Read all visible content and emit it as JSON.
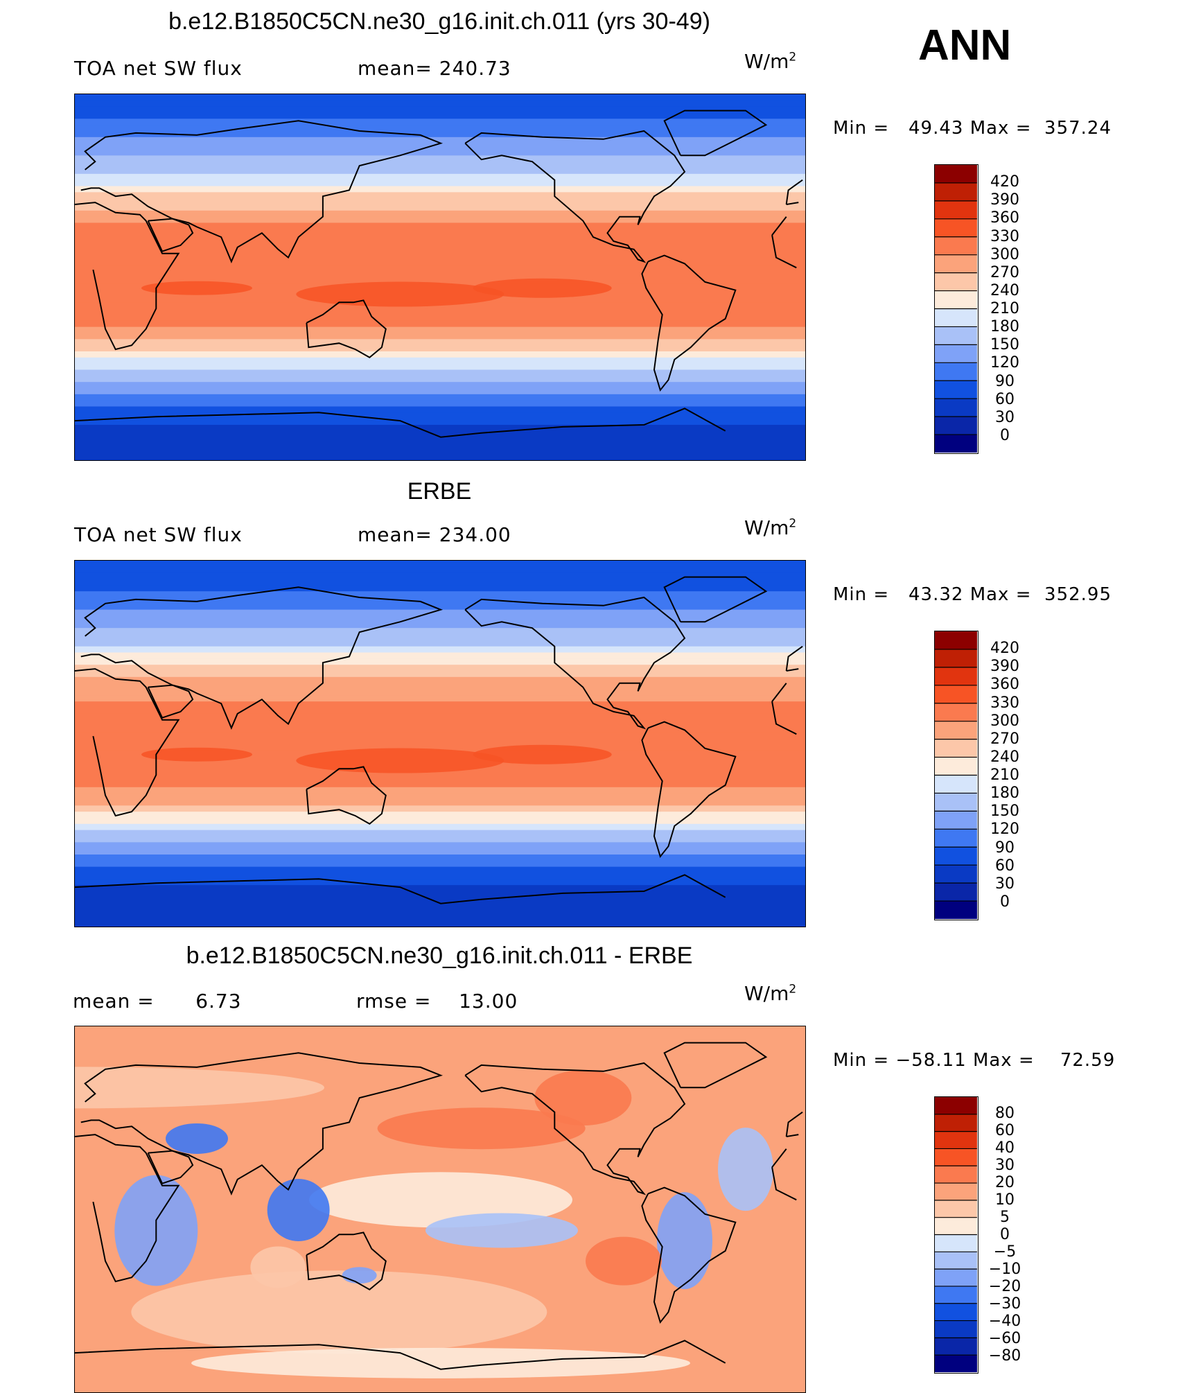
{
  "season": "ANN",
  "units_prefix": "W/m",
  "units_sup": "2",
  "colors": {
    "abs_scale": [
      "#00007f",
      "#0a26a8",
      "#0a3ac4",
      "#1151e0",
      "#3f78f2",
      "#7fa2f7",
      "#a9c1f7",
      "#d6e5fb",
      "#fdebdb",
      "#fcc7a9",
      "#fba37b",
      "#fa7a4f",
      "#f75425",
      "#e1340f",
      "#bf2005",
      "#8c0000"
    ],
    "diff_scale": [
      "#00007f",
      "#0a26a8",
      "#0a3ac4",
      "#1151e0",
      "#3f78f2",
      "#7fa2f7",
      "#a9c1f7",
      "#d6e5fb",
      "#fdebdb",
      "#fcc7a9",
      "#fba37b",
      "#fa7a4f",
      "#f75425",
      "#e1340f",
      "#bf2005",
      "#8c0000"
    ]
  },
  "chart_data": [
    {
      "type": "heatmap",
      "title": "b.e12.B1850C5CN.ne30_g16.init.ch.011 (yrs 30-49)",
      "left_label": "TOA net SW flux",
      "mid_label": "mean= 240.73",
      "units": "W/m2",
      "min_label": "Min =",
      "min_value": "49.43",
      "max_label": "Max =",
      "max_value": "357.24",
      "mean": 240.73,
      "min": 49.43,
      "max": 357.24,
      "colorbar_levels": [
        "420",
        "390",
        "360",
        "330",
        "300",
        "270",
        "240",
        "210",
        "180",
        "150",
        "120",
        "90",
        "60",
        "30",
        "0"
      ],
      "lat_profile": [
        {
          "lat": 90,
          "value": 90
        },
        {
          "lat": 80,
          "value": 80
        },
        {
          "lat": 70,
          "value": 110
        },
        {
          "lat": 60,
          "value": 150
        },
        {
          "lat": 50,
          "value": 185
        },
        {
          "lat": 40,
          "value": 245
        },
        {
          "lat": 30,
          "value": 290
        },
        {
          "lat": 20,
          "value": 315
        },
        {
          "lat": 10,
          "value": 320
        },
        {
          "lat": 0,
          "value": 320
        },
        {
          "lat": -10,
          "value": 325
        },
        {
          "lat": -20,
          "value": 315
        },
        {
          "lat": -30,
          "value": 280
        },
        {
          "lat": -40,
          "value": 200
        },
        {
          "lat": -50,
          "value": 150
        },
        {
          "lat": -60,
          "value": 105
        },
        {
          "lat": -70,
          "value": 65
        },
        {
          "lat": -80,
          "value": 45
        },
        {
          "lat": -90,
          "value": 40
        }
      ]
    },
    {
      "type": "heatmap",
      "title": "ERBE",
      "left_label": "TOA net SW flux",
      "mid_label": "mean= 234.00",
      "units": "W/m2",
      "min_label": "Min =",
      "min_value": "43.32",
      "max_label": "Max =",
      "max_value": "352.95",
      "mean": 234.0,
      "min": 43.32,
      "max": 352.95,
      "colorbar_levels": [
        "420",
        "390",
        "360",
        "330",
        "300",
        "270",
        "240",
        "210",
        "180",
        "150",
        "120",
        "90",
        "60",
        "30",
        "0"
      ],
      "lat_profile": [
        {
          "lat": 90,
          "value": 85
        },
        {
          "lat": 80,
          "value": 75
        },
        {
          "lat": 70,
          "value": 105
        },
        {
          "lat": 60,
          "value": 140
        },
        {
          "lat": 50,
          "value": 175
        },
        {
          "lat": 40,
          "value": 235
        },
        {
          "lat": 30,
          "value": 280
        },
        {
          "lat": 20,
          "value": 305
        },
        {
          "lat": 10,
          "value": 310
        },
        {
          "lat": 0,
          "value": 315
        },
        {
          "lat": -10,
          "value": 315
        },
        {
          "lat": -20,
          "value": 300
        },
        {
          "lat": -30,
          "value": 265
        },
        {
          "lat": -40,
          "value": 195
        },
        {
          "lat": -50,
          "value": 140
        },
        {
          "lat": -60,
          "value": 95
        },
        {
          "lat": -70,
          "value": 60
        },
        {
          "lat": -80,
          "value": 40
        },
        {
          "lat": -90,
          "value": 35
        }
      ]
    },
    {
      "type": "heatmap",
      "title": "b.e12.B1850C5CN.ne30_g16.init.ch.011 - ERBE",
      "left_label": "mean =",
      "left_value": "6.73",
      "mid_label": "rmse =",
      "mid_value": "13.00",
      "units": "W/m2",
      "min_label": "Min =",
      "min_value": "−58.11",
      "max_label": "Max =",
      "max_value": "72.59",
      "mean": 6.73,
      "rmse": 13.0,
      "min": -58.11,
      "max": 72.59,
      "colorbar_levels": [
        "80",
        "60",
        "40",
        "30",
        "20",
        "10",
        "5",
        "0",
        "−5",
        "−10",
        "−20",
        "−30",
        "−40",
        "−60",
        "−80"
      ]
    }
  ]
}
